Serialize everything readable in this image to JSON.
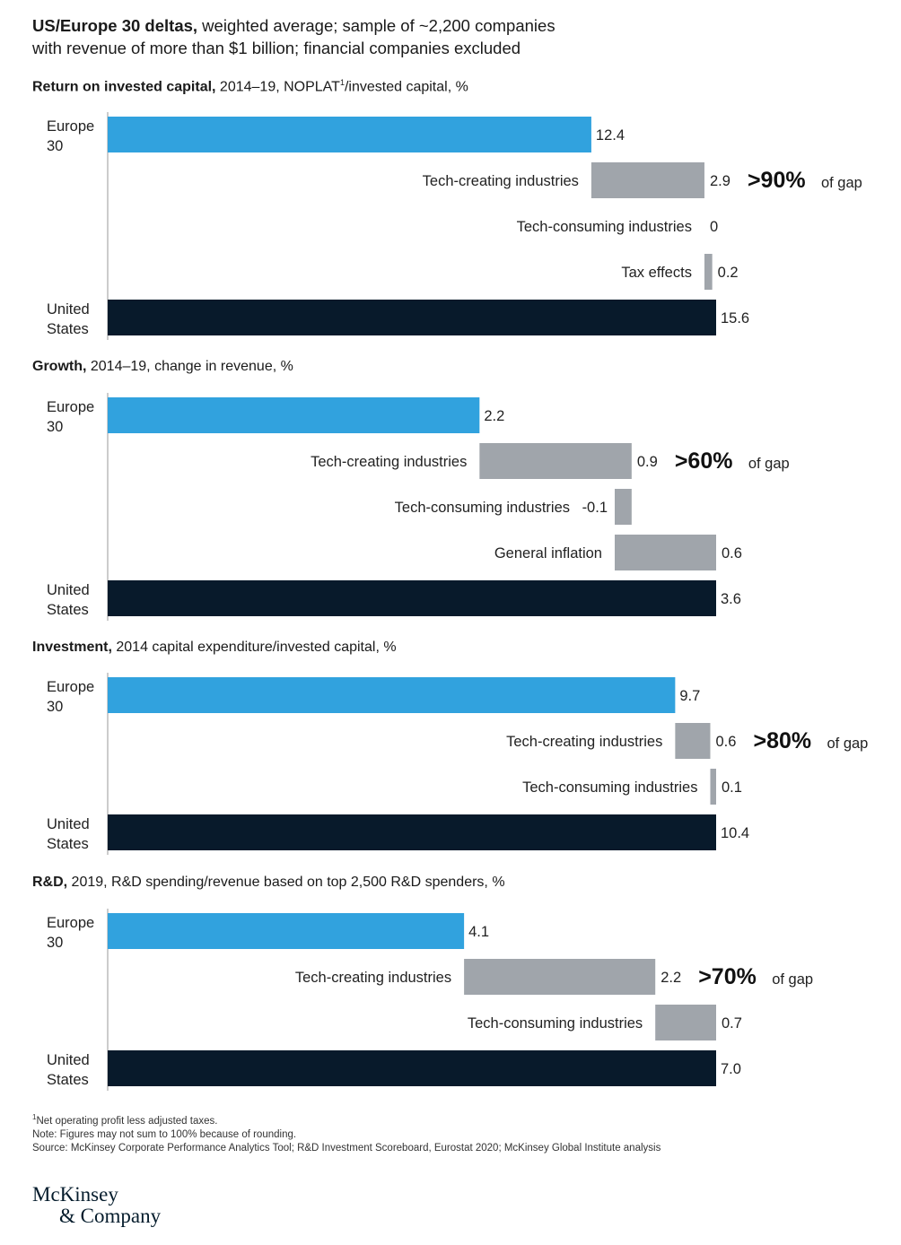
{
  "header": {
    "title_bold": "US/Europe 30 deltas,",
    "title_rest": " weighted average; sample of ~2,200 companies",
    "title_line2": "with revenue of more than $1 billion; financial companies excluded"
  },
  "colors": {
    "europe": "#31a2de",
    "delta": "#a0a5ab",
    "us": "#081a2b"
  },
  "chart_data": [
    {
      "type": "bar",
      "title_bold": "Return on invested capital,",
      "title_rest": " 2014–19, NOPLAT",
      "title_sup": "1",
      "title_tail": "/invested capital, %",
      "xlim": [
        0,
        15.6
      ],
      "steps": [
        {
          "label": "Europe\n30",
          "value": 12.4,
          "value_label": "12.4",
          "kind": "europe"
        },
        {
          "label": "Tech-creating industries",
          "value": 2.9,
          "value_label": "2.9",
          "kind": "delta",
          "note_big": ">90%",
          "note_small": "of gap"
        },
        {
          "label": "Tech-consuming industries",
          "value": 0,
          "value_label": "0",
          "kind": "delta"
        },
        {
          "label": "Tax effects",
          "value": 0.2,
          "value_label": "0.2",
          "kind": "delta"
        },
        {
          "label": "United\nStates",
          "value": 15.6,
          "value_label": "15.6",
          "kind": "us"
        }
      ]
    },
    {
      "type": "bar",
      "title_bold": "Growth,",
      "title_rest": " 2014–19, change in revenue, %",
      "xlim": [
        0,
        3.6
      ],
      "steps": [
        {
          "label": "Europe\n30",
          "value": 2.2,
          "value_label": "2.2",
          "kind": "europe"
        },
        {
          "label": "Tech-creating industries",
          "value": 0.9,
          "value_label": "0.9",
          "kind": "delta",
          "note_big": ">60%",
          "note_small": "of gap"
        },
        {
          "label": "Tech-consuming industries",
          "value": -0.1,
          "value_label": "-0.1",
          "kind": "delta"
        },
        {
          "label": "General inflation",
          "value": 0.6,
          "value_label": "0.6",
          "kind": "delta"
        },
        {
          "label": "United\nStates",
          "value": 3.6,
          "value_label": "3.6",
          "kind": "us"
        }
      ]
    },
    {
      "type": "bar",
      "title_bold": "Investment,",
      "title_rest": " 2014 capital expenditure/invested capital, %",
      "xlim": [
        0,
        10.4
      ],
      "steps": [
        {
          "label": "Europe\n30",
          "value": 9.7,
          "value_label": "9.7",
          "kind": "europe"
        },
        {
          "label": "Tech-creating industries",
          "value": 0.6,
          "value_label": "0.6",
          "kind": "delta",
          "note_big": ">80%",
          "note_small": "of gap"
        },
        {
          "label": "Tech-consuming industries",
          "value": 0.1,
          "value_label": "0.1",
          "kind": "delta"
        },
        {
          "label": "United\nStates",
          "value": 10.4,
          "value_label": "10.4",
          "kind": "us"
        }
      ]
    },
    {
      "type": "bar",
      "title_bold": "R&D,",
      "title_rest": " 2019, R&D spending/revenue based on top 2,500 R&D spenders, %",
      "xlim": [
        0,
        7.0
      ],
      "steps": [
        {
          "label": "Europe\n30",
          "value": 4.1,
          "value_label": "4.1",
          "kind": "europe"
        },
        {
          "label": "Tech-creating industries",
          "value": 2.2,
          "value_label": "2.2",
          "kind": "delta",
          "note_big": ">70%",
          "note_small": "of gap"
        },
        {
          "label": "Tech-consuming industries",
          "value": 0.7,
          "value_label": "0.7",
          "kind": "delta"
        },
        {
          "label": "United\nStates",
          "value": 7.0,
          "value_label": "7.0",
          "kind": "us"
        }
      ]
    }
  ],
  "footer": {
    "footnote_mark": "1",
    "footnote": "Net operating profit less adjusted taxes.",
    "note": "Note: Figures may not sum to 100% because of rounding.",
    "source": "Source: McKinsey Corporate Performance Analytics Tool; R&D Investment Scoreboard, Eurostat 2020; McKinsey Global Institute analysis"
  },
  "logo": {
    "line1": "McKinsey",
    "line2": "& Company"
  }
}
